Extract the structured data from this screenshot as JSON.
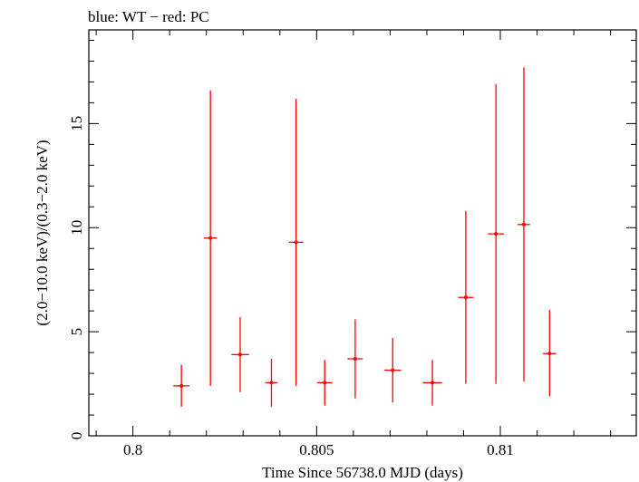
{
  "chart_data": {
    "type": "scatter",
    "title": "blue: WT − red: PC",
    "xlabel": "Time Since 56738.0 MJD (days)",
    "ylabel": "(2.0−10.0 keV)/(0.3−2.0 keV)",
    "xlim": [
      0.7988,
      0.8137
    ],
    "ylim": [
      0,
      19.5
    ],
    "x_ticks": [
      {
        "value": 0.8,
        "label": "0.8"
      },
      {
        "value": 0.805,
        "label": "0.805"
      },
      {
        "value": 0.81,
        "label": "0.81"
      }
    ],
    "y_ticks": [
      {
        "value": 0,
        "label": "0"
      },
      {
        "value": 5,
        "label": "5"
      },
      {
        "value": 10,
        "label": "10"
      },
      {
        "value": 15,
        "label": "15"
      }
    ],
    "grid": false,
    "series": [
      {
        "color": "#ff0000",
        "points": [
          {
            "x": 0.80132,
            "xerr": 0.00022,
            "y": 2.4,
            "ylo": 1.4,
            "yhi": 3.4
          },
          {
            "x": 0.80211,
            "xerr": 0.00018,
            "y": 9.5,
            "ylo": 2.4,
            "yhi": 16.6
          },
          {
            "x": 0.80292,
            "xerr": 0.00024,
            "y": 3.9,
            "ylo": 2.1,
            "yhi": 5.7
          },
          {
            "x": 0.80377,
            "xerr": 0.00017,
            "y": 2.55,
            "ylo": 1.4,
            "yhi": 3.7
          },
          {
            "x": 0.80444,
            "xerr": 0.0002,
            "y": 9.3,
            "ylo": 2.4,
            "yhi": 16.2
          },
          {
            "x": 0.80522,
            "xerr": 0.00021,
            "y": 2.55,
            "ylo": 1.45,
            "yhi": 3.65
          },
          {
            "x": 0.80605,
            "xerr": 0.00021,
            "y": 3.7,
            "ylo": 1.8,
            "yhi": 5.6
          },
          {
            "x": 0.80707,
            "xerr": 0.00023,
            "y": 3.15,
            "ylo": 1.6,
            "yhi": 4.7
          },
          {
            "x": 0.80815,
            "xerr": 0.00026,
            "y": 2.55,
            "ylo": 1.45,
            "yhi": 3.65
          },
          {
            "x": 0.80906,
            "xerr": 0.00021,
            "y": 6.65,
            "ylo": 2.5,
            "yhi": 10.8
          },
          {
            "x": 0.80988,
            "xerr": 0.00022,
            "y": 9.7,
            "ylo": 2.5,
            "yhi": 16.9
          },
          {
            "x": 0.81064,
            "xerr": 0.00017,
            "y": 10.15,
            "ylo": 2.6,
            "yhi": 17.7
          },
          {
            "x": 0.81134,
            "xerr": 0.00018,
            "y": 3.95,
            "ylo": 1.9,
            "yhi": 6.05
          }
        ]
      }
    ]
  }
}
